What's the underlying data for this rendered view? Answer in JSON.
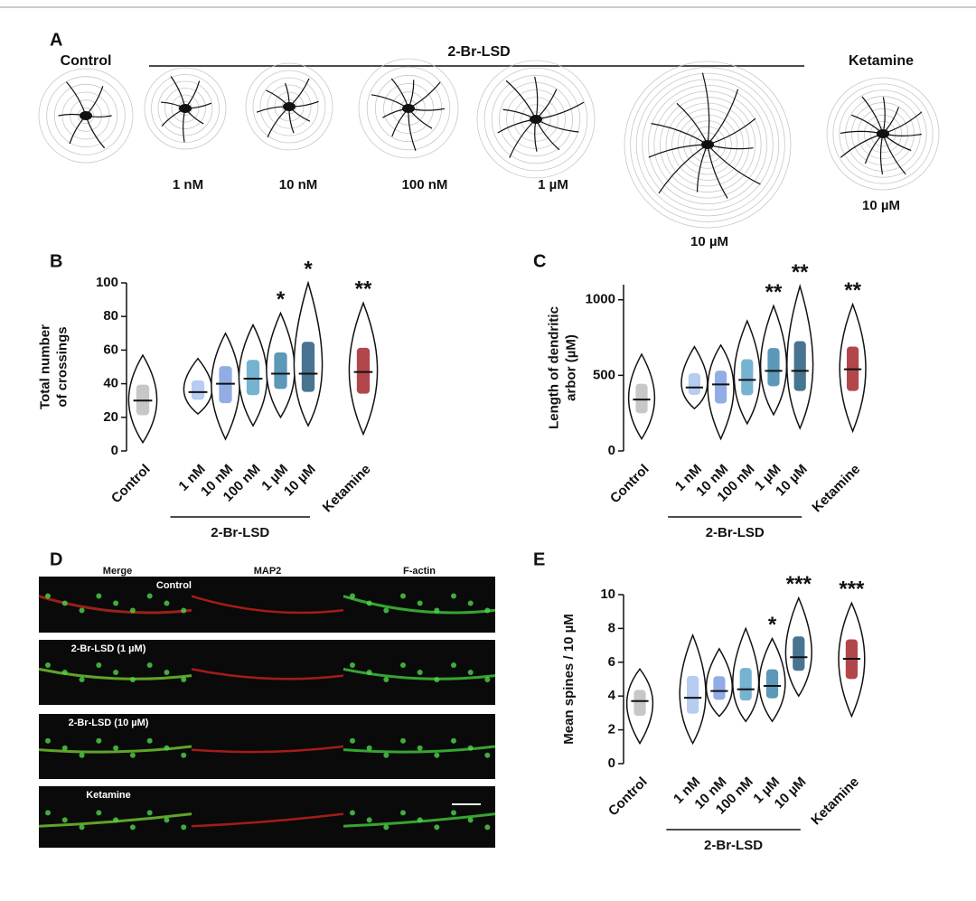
{
  "panel_a": {
    "panel_label": "A",
    "left_label": "Control",
    "group_label": "2-Br-LSD",
    "right_label": "Ketamine",
    "doses": [
      "1 nM",
      "10 nM",
      "100 nM",
      "1 µM",
      "10 µM"
    ],
    "ketamine_dose": "10 µM"
  },
  "panel_d": {
    "panel_label": "D",
    "columns": [
      "Merge",
      "MAP2",
      "F-actin"
    ],
    "rows": [
      "Control",
      "2-Br-LSD (1 µM)",
      "2-Br-LSD (10 µM)",
      "Ketamine"
    ]
  },
  "chart_data": [
    {
      "type": "violin",
      "panel_label": "B",
      "ylabel": [
        "Total number",
        "of crossings"
      ],
      "group_label": "2-Br-LSD",
      "categories": [
        "Control",
        "1 nM",
        "10 nM",
        "100 nM",
        "1 µM",
        "10 µM",
        "Ketamine"
      ],
      "values": [
        30,
        35,
        40,
        43,
        46,
        46,
        47
      ],
      "min": [
        5,
        22,
        7,
        15,
        20,
        15,
        10
      ],
      "max": [
        57,
        55,
        70,
        75,
        82,
        100,
        88
      ],
      "annotations": [
        null,
        null,
        null,
        null,
        "*",
        "*",
        "**"
      ],
      "colors": [
        "#bdbdbd",
        "#a9c3ee",
        "#7f9fe0",
        "#5ea6c8",
        "#3f86aa",
        "#285c7e",
        "#a3272b"
      ],
      "ylim": [
        0,
        100
      ],
      "yticks": [
        0,
        20,
        40,
        60,
        80,
        100
      ]
    },
    {
      "type": "violin",
      "panel_label": "C",
      "ylabel": [
        "Length of dendritic",
        "arbor (µM)"
      ],
      "group_label": "2-Br-LSD",
      "categories": [
        "Control",
        "1 nM",
        "10 nM",
        "100 nM",
        "1 µM",
        "10 µM",
        "Ketamine"
      ],
      "values": [
        340,
        420,
        440,
        470,
        530,
        530,
        540
      ],
      "min": [
        80,
        280,
        80,
        180,
        240,
        150,
        130
      ],
      "max": [
        640,
        690,
        700,
        860,
        960,
        1090,
        970
      ],
      "annotations": [
        null,
        null,
        null,
        null,
        "**",
        "**",
        "**"
      ],
      "colors": [
        "#bdbdbd",
        "#a9c3ee",
        "#7f9fe0",
        "#5ea6c8",
        "#3f86aa",
        "#285c7e",
        "#a3272b"
      ],
      "ylim": [
        0,
        1100
      ],
      "yticks": [
        0,
        500,
        1000
      ]
    },
    {
      "type": "violin",
      "panel_label": "E",
      "ylabel": [
        "Mean spines / 10 µM"
      ],
      "group_label": "2-Br-LSD",
      "categories": [
        "Control",
        "1 nM",
        "10 nM",
        "100 nM",
        "1 µM",
        "10 µM",
        "Ketamine"
      ],
      "values": [
        3.7,
        3.9,
        4.3,
        4.4,
        4.6,
        6.3,
        6.2
      ],
      "min": [
        1.2,
        1.2,
        2.8,
        2.5,
        2.5,
        4.0,
        2.8
      ],
      "max": [
        5.6,
        7.6,
        6.8,
        8.0,
        7.4,
        9.8,
        9.5
      ],
      "annotations": [
        null,
        null,
        null,
        null,
        "*",
        "***",
        "***"
      ],
      "colors": [
        "#bdbdbd",
        "#a9c3ee",
        "#7f9fe0",
        "#5ea6c8",
        "#3f86aa",
        "#285c7e",
        "#a3272b"
      ],
      "ylim": [
        0,
        10
      ],
      "yticks": [
        0,
        2,
        4,
        6,
        8,
        10
      ]
    }
  ]
}
